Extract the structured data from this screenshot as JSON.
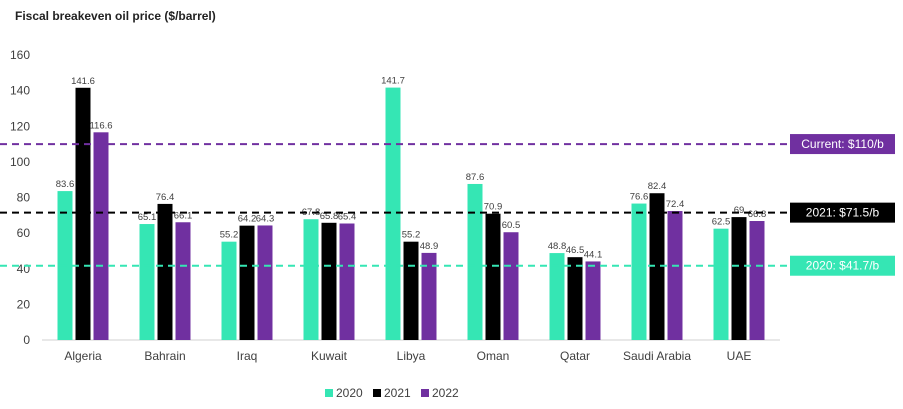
{
  "chart_data": {
    "type": "bar",
    "title": "Fiscal breakeven oil price ($/barrel)",
    "categories": [
      "Algeria",
      "Bahrain",
      "Iraq",
      "Kuwait",
      "Libya",
      "Oman",
      "Qatar",
      "Saudi Arabia",
      "UAE"
    ],
    "series": [
      {
        "name": "2020",
        "color": "#35e6b4",
        "values": [
          83.6,
          65.1,
          55.2,
          67.8,
          141.7,
          87.6,
          48.8,
          76.6,
          62.5
        ]
      },
      {
        "name": "2021",
        "color": "#000000",
        "values": [
          141.6,
          76.4,
          64.2,
          65.8,
          55.2,
          70.9,
          46.5,
          82.4,
          69
        ]
      },
      {
        "name": "2022",
        "color": "#7030a0",
        "values": [
          116.6,
          66.1,
          64.3,
          65.4,
          48.9,
          60.5,
          44.1,
          72.4,
          66.8
        ]
      }
    ],
    "ylim": [
      0,
      160
    ],
    "yticks": [
      0,
      20,
      40,
      60,
      80,
      100,
      120,
      140,
      160
    ],
    "grid": false,
    "legend": "bottom",
    "reference_lines": [
      {
        "value": 110,
        "label": "Current: $110/b",
        "color": "#7030a0",
        "text_color": "#ffffff"
      },
      {
        "value": 71.5,
        "label": "2021: $71.5/b",
        "color": "#000000",
        "text_color": "#ffffff"
      },
      {
        "value": 41.7,
        "label": "2020: $41.7/b",
        "color": "#35e6b4",
        "text_color": "#ffffff"
      }
    ]
  }
}
